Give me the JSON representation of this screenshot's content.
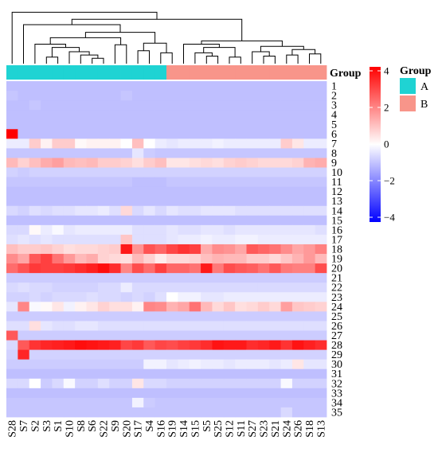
{
  "chart_data": {
    "type": "heatmap",
    "title": "",
    "columns": [
      "S28",
      "S7",
      "S2",
      "S3",
      "S1",
      "S10",
      "S8",
      "S6",
      "S22",
      "S9",
      "S20",
      "S17",
      "S4",
      "S16",
      "S19",
      "S14",
      "S15",
      "S5",
      "S25",
      "S12",
      "S11",
      "S27",
      "S23",
      "S21",
      "S24",
      "S26",
      "S18",
      "S13"
    ],
    "rows": [
      "1",
      "2",
      "3",
      "4",
      "5",
      "6",
      "7",
      "8",
      "9",
      "10",
      "11",
      "12",
      "13",
      "14",
      "15",
      "16",
      "17",
      "18",
      "19",
      "20",
      "21",
      "22",
      "23",
      "24",
      "25",
      "26",
      "27",
      "28",
      "29",
      "30",
      "31",
      "32",
      "33",
      "34",
      "35"
    ],
    "groups": [
      "A",
      "A",
      "A",
      "A",
      "A",
      "A",
      "A",
      "A",
      "A",
      "A",
      "A",
      "A",
      "A",
      "A",
      "B",
      "B",
      "B",
      "B",
      "B",
      "B",
      "B",
      "B",
      "B",
      "B",
      "B",
      "B",
      "B",
      "B"
    ],
    "group_header": "Group",
    "legend": {
      "group_title": "Group",
      "group_items": [
        {
          "label": "A",
          "color": "#1fd3d3"
        },
        {
          "label": "B",
          "color": "#f8958a"
        }
      ],
      "scale_ticks": [
        "4",
        "2",
        "0",
        "−2",
        "−4"
      ],
      "scale_range": [
        -4,
        4
      ],
      "colors": {
        "low": "#0000ff",
        "mid": "#ffffff",
        "high": "#ff0000"
      }
    },
    "values": [
      [
        -1.0,
        -1.0,
        -1.0,
        -1.0,
        -1.0,
        -1.0,
        -1.0,
        -1.0,
        -1.0,
        -1.0,
        -1.0,
        -1.0,
        -1.0,
        -1.0,
        -1.0,
        -1.0,
        -1.0,
        -1.0,
        -1.0,
        -1.0,
        -1.0,
        -1.0,
        -1.0,
        -1.0,
        -1.0,
        -1.0,
        -1.0,
        -1.0
      ],
      [
        -0.9,
        -1.0,
        -1.0,
        -1.0,
        -1.0,
        -1.0,
        -1.0,
        -1.0,
        -1.0,
        -1.0,
        -0.9,
        -1.0,
        -1.0,
        -1.0,
        -1.0,
        -1.0,
        -1.0,
        -1.0,
        -1.0,
        -1.0,
        -1.0,
        -1.0,
        -1.0,
        -1.0,
        -1.0,
        -1.0,
        -1.0,
        -1.0
      ],
      [
        -1.0,
        -1.0,
        -0.9,
        -1.0,
        -1.0,
        -1.0,
        -1.0,
        -1.0,
        -1.0,
        -1.0,
        -1.0,
        -1.0,
        -1.0,
        -1.0,
        -1.0,
        -1.0,
        -1.0,
        -1.0,
        -1.0,
        -1.0,
        -1.0,
        -1.0,
        -1.0,
        -1.0,
        -1.0,
        -1.0,
        -1.0,
        -1.0
      ],
      [
        -1.0,
        -1.0,
        -1.0,
        -1.0,
        -1.0,
        -1.0,
        -1.0,
        -1.0,
        -1.0,
        -1.0,
        -1.0,
        -1.0,
        -1.0,
        -1.0,
        -1.0,
        -1.0,
        -1.0,
        -1.0,
        -1.0,
        -1.0,
        -1.0,
        -1.0,
        -1.0,
        -1.0,
        -1.0,
        -1.0,
        -1.0,
        -1.0
      ],
      [
        -1.0,
        -1.0,
        -1.0,
        -1.0,
        -1.0,
        -1.0,
        -1.0,
        -1.0,
        -1.0,
        -1.0,
        -1.0,
        -1.0,
        -1.0,
        -1.0,
        -1.0,
        -1.0,
        -1.0,
        -1.0,
        -1.0,
        -1.0,
        -1.0,
        -1.0,
        -1.0,
        -1.0,
        -1.0,
        -1.0,
        -1.0,
        -1.0
      ],
      [
        4.0,
        -1.0,
        -1.0,
        -1.0,
        -1.0,
        -1.0,
        -1.0,
        -1.0,
        -1.0,
        -1.0,
        -1.0,
        -1.0,
        -1.0,
        -1.0,
        -1.0,
        -1.0,
        -1.0,
        -1.0,
        -1.0,
        -1.0,
        -1.0,
        -1.0,
        -1.0,
        -1.0,
        -1.0,
        -1.0,
        -1.0,
        -1.0
      ],
      [
        -0.3,
        -0.3,
        0.8,
        0.2,
        0.8,
        0.8,
        0.1,
        0.2,
        0.2,
        0.2,
        0.0,
        1.0,
        0.0,
        -0.3,
        -0.4,
        -0.3,
        -0.3,
        -0.3,
        -0.2,
        -0.3,
        -0.3,
        -0.3,
        -0.3,
        -0.3,
        0.8,
        0.4,
        -0.3,
        -0.3
      ],
      [
        -0.9,
        -0.9,
        -0.9,
        -0.9,
        -0.9,
        -0.9,
        -0.9,
        -0.9,
        -0.9,
        -0.9,
        -0.9,
        -0.4,
        -0.8,
        -0.9,
        -0.9,
        -0.9,
        -0.9,
        -0.9,
        -0.9,
        -0.9,
        -0.9,
        -0.9,
        -0.9,
        -0.9,
        -0.9,
        -0.9,
        -0.9,
        -0.9
      ],
      [
        1.1,
        0.7,
        1.0,
        1.3,
        1.5,
        1.1,
        1.0,
        1.1,
        0.8,
        0.8,
        0.7,
        0.5,
        0.8,
        1.0,
        0.4,
        0.4,
        0.5,
        0.6,
        0.5,
        0.7,
        0.8,
        0.7,
        0.6,
        0.6,
        0.6,
        0.7,
        1.2,
        1.3
      ],
      [
        -0.7,
        -0.8,
        -0.7,
        -0.7,
        -0.7,
        -0.7,
        -0.7,
        -0.7,
        -0.7,
        -0.7,
        -0.7,
        -0.7,
        -0.7,
        -0.7,
        -0.7,
        -0.7,
        -0.7,
        -0.7,
        -0.7,
        -0.7,
        -0.7,
        -0.7,
        -0.7,
        -0.7,
        -0.7,
        -0.7,
        -0.7,
        -0.7
      ],
      [
        -0.9,
        -0.9,
        -0.9,
        -0.9,
        -0.9,
        -0.9,
        -0.9,
        -0.9,
        -0.9,
        -0.9,
        -0.9,
        -1.0,
        -1.0,
        -1.0,
        -0.9,
        -0.9,
        -0.9,
        -0.9,
        -0.9,
        -0.9,
        -0.9,
        -0.9,
        -0.9,
        -0.9,
        -0.9,
        -0.9,
        -0.9,
        -0.9
      ],
      [
        -1.0,
        -1.0,
        -1.0,
        -1.0,
        -1.0,
        -1.0,
        -1.0,
        -1.0,
        -1.0,
        -1.0,
        -1.0,
        -1.0,
        -1.0,
        -1.0,
        -1.0,
        -1.0,
        -1.0,
        -1.0,
        -1.0,
        -1.0,
        -1.0,
        -1.0,
        -1.0,
        -1.0,
        -1.0,
        -1.0,
        -1.0,
        -1.0
      ],
      [
        -1.0,
        -1.0,
        -1.0,
        -1.0,
        -1.0,
        -1.0,
        -1.0,
        -1.0,
        -1.0,
        -1.0,
        -1.0,
        -1.0,
        -1.0,
        -1.0,
        -1.0,
        -1.0,
        -1.0,
        -1.0,
        -1.0,
        -1.0,
        -1.0,
        -1.0,
        -1.0,
        -1.0,
        -1.0,
        -1.0,
        -1.0,
        -1.0
      ],
      [
        -0.6,
        -0.7,
        -0.5,
        -0.6,
        -0.5,
        -0.5,
        -0.4,
        -0.4,
        -0.3,
        -0.5,
        0.6,
        -0.6,
        -0.4,
        -0.6,
        -0.4,
        -0.5,
        -0.5,
        -0.4,
        -0.4,
        -0.4,
        -0.5,
        -0.5,
        -0.5,
        -0.5,
        -0.5,
        -0.5,
        -0.5,
        -0.5
      ],
      [
        -1.0,
        -1.0,
        -1.0,
        -1.0,
        -1.0,
        -1.0,
        -1.0,
        -1.0,
        -1.0,
        -1.0,
        -1.0,
        -1.0,
        -1.0,
        -1.0,
        -1.0,
        -1.0,
        -1.0,
        -1.0,
        -1.0,
        -1.0,
        -1.0,
        -1.0,
        -1.0,
        -1.0,
        -1.0,
        -1.0,
        -1.0,
        -1.0
      ],
      [
        -0.6,
        -0.6,
        0.1,
        -0.3,
        -0.1,
        -0.4,
        -0.3,
        -0.3,
        -0.3,
        -0.3,
        -0.3,
        -0.5,
        -0.5,
        -0.5,
        -0.4,
        -0.5,
        -0.5,
        -0.4,
        -0.4,
        -0.5,
        -0.4,
        -0.4,
        -0.4,
        -0.4,
        -0.4,
        -0.4,
        -0.4,
        -0.5
      ],
      [
        -0.5,
        -0.4,
        -0.5,
        -0.4,
        -0.5,
        -0.5,
        -0.5,
        -0.5,
        -0.5,
        -0.5,
        0.9,
        -0.5,
        -0.5,
        -0.5,
        -0.4,
        -0.3,
        -0.3,
        -0.2,
        -0.3,
        -0.3,
        -0.2,
        -0.2,
        -0.3,
        -0.3,
        -0.3,
        -0.3,
        -0.3,
        -0.3
      ],
      [
        1.0,
        0.8,
        0.8,
        0.9,
        0.7,
        0.5,
        0.6,
        0.6,
        0.7,
        0.8,
        3.6,
        1.7,
        2.7,
        2.4,
        2.9,
        3.2,
        3.0,
        1.3,
        1.8,
        1.7,
        1.4,
        2.6,
        2.4,
        2.2,
        1.8,
        1.4,
        1.6,
        2.0
      ],
      [
        1.8,
        1.4,
        2.6,
        3.0,
        2.2,
        1.6,
        1.1,
        1.3,
        0.7,
        0.6,
        0.5,
        1.1,
        0.7,
        0.3,
        0.6,
        0.6,
        0.7,
        1.0,
        1.2,
        1.1,
        1.1,
        0.8,
        0.8,
        0.6,
        0.9,
        1.2,
        1.6,
        1.1
      ],
      [
        2.3,
        2.7,
        3.1,
        3.0,
        3.0,
        3.1,
        3.3,
        3.5,
        3.8,
        3.3,
        1.9,
        2.8,
        2.3,
        3.0,
        2.4,
        2.4,
        2.2,
        3.6,
        2.1,
        2.8,
        2.6,
        2.5,
        2.2,
        2.6,
        2.1,
        2.0,
        2.0,
        2.8
      ],
      [
        -0.8,
        -0.8,
        -0.8,
        -0.8,
        -0.8,
        -0.8,
        -0.8,
        -0.8,
        -0.8,
        -0.8,
        -0.8,
        -0.8,
        -0.8,
        -0.8,
        -0.8,
        -0.8,
        -0.8,
        -0.8,
        -0.8,
        -0.8,
        -0.8,
        -0.8,
        -0.8,
        -0.8,
        -0.8,
        -0.8,
        -0.8,
        -0.8
      ],
      [
        -0.6,
        -0.5,
        -0.6,
        -0.6,
        -0.7,
        -0.7,
        -0.7,
        -0.7,
        -0.6,
        -0.6,
        -0.3,
        -0.6,
        -0.6,
        -0.6,
        -0.6,
        -0.6,
        -0.6,
        -0.6,
        -0.6,
        -0.6,
        -0.6,
        -0.6,
        -0.6,
        -0.6,
        -0.6,
        -0.6,
        -0.6,
        -0.6
      ],
      [
        -0.7,
        -0.7,
        -0.6,
        -0.7,
        -0.6,
        -0.6,
        -0.6,
        -0.5,
        -0.6,
        -0.6,
        -0.7,
        -0.6,
        -0.7,
        -0.5,
        0.0,
        -0.2,
        -0.2,
        -0.4,
        -0.4,
        -0.3,
        -0.3,
        -0.3,
        -0.3,
        -0.3,
        -0.3,
        -0.3,
        -0.3,
        -0.3
      ],
      [
        -0.4,
        1.9,
        -0.1,
        0.1,
        0.4,
        -0.2,
        0.2,
        0.4,
        0.7,
        0.5,
        0.5,
        0.2,
        1.9,
        1.8,
        1.2,
        1.4,
        2.2,
        1.1,
        0.6,
        0.9,
        0.5,
        0.6,
        0.8,
        0.6,
        1.5,
        0.9,
        0.8,
        0.7
      ],
      [
        -0.8,
        -0.8,
        -0.8,
        -0.8,
        -0.8,
        -0.8,
        -0.8,
        -0.8,
        -0.8,
        -0.8,
        -0.8,
        -0.8,
        -0.8,
        -0.8,
        -0.8,
        -0.8,
        -0.8,
        -0.8,
        -0.8,
        -0.8,
        -0.8,
        -0.8,
        -0.8,
        -0.8,
        -0.8,
        -0.8,
        -0.8,
        -0.8
      ],
      [
        -0.5,
        -0.5,
        0.5,
        -0.4,
        -0.5,
        -0.5,
        -0.4,
        -0.4,
        -0.5,
        -0.5,
        -0.5,
        -0.5,
        -0.5,
        -0.5,
        -0.5,
        -0.5,
        -0.5,
        -0.5,
        -0.5,
        -0.5,
        -0.5,
        -0.5,
        -0.5,
        -0.5,
        -0.5,
        -0.5,
        -0.5,
        -0.5
      ],
      [
        2.6,
        -0.8,
        -0.8,
        -0.8,
        -0.8,
        -0.8,
        -0.8,
        -0.8,
        -0.8,
        -0.8,
        -0.8,
        -0.8,
        -0.8,
        -0.8,
        -0.8,
        -0.8,
        -0.8,
        -0.8,
        -0.8,
        -0.8,
        -0.8,
        -0.8,
        -0.8,
        -0.8,
        -0.8,
        -0.8,
        -0.8,
        -0.8
      ],
      [
        -0.6,
        2.6,
        3.2,
        3.4,
        3.5,
        3.6,
        3.8,
        3.7,
        3.6,
        3.5,
        2.9,
        3.1,
        2.6,
        2.9,
        2.8,
        3.0,
        3.1,
        3.3,
        3.7,
        3.6,
        3.6,
        3.3,
        3.4,
        3.6,
        3.2,
        3.7,
        3.5,
        3.3
      ],
      [
        -0.7,
        3.4,
        -0.7,
        -0.7,
        -0.7,
        -0.7,
        -0.7,
        -0.7,
        -0.7,
        -0.7,
        -0.7,
        -0.7,
        -0.7,
        -0.7,
        -0.7,
        -0.7,
        -0.7,
        -0.7,
        -0.7,
        -0.7,
        -0.7,
        -0.7,
        -0.7,
        -0.7,
        -0.7,
        -0.7,
        -0.7,
        -0.7
      ],
      [
        -0.8,
        -0.8,
        -0.8,
        -0.8,
        -0.8,
        -0.8,
        -0.8,
        -0.8,
        -0.8,
        -0.8,
        -0.8,
        -0.8,
        -0.2,
        -0.2,
        -0.4,
        -0.3,
        -0.2,
        -0.3,
        -0.3,
        -0.4,
        -0.3,
        -0.3,
        -0.3,
        -0.4,
        -0.3,
        0.4,
        -0.4,
        -0.4
      ],
      [
        -1.0,
        -1.0,
        -1.0,
        -1.0,
        -1.0,
        -1.0,
        -1.0,
        -1.0,
        -1.0,
        -1.0,
        -1.0,
        -1.0,
        -1.0,
        -1.0,
        -1.0,
        -1.0,
        -1.0,
        -1.0,
        -1.0,
        -1.0,
        -1.0,
        -1.0,
        -1.0,
        -1.0,
        -1.0,
        -1.0,
        -1.0,
        -1.0
      ],
      [
        -0.6,
        -0.6,
        0.0,
        -0.8,
        -0.6,
        -0.1,
        -0.7,
        -0.7,
        -0.5,
        -0.7,
        -0.7,
        0.4,
        -0.6,
        -0.6,
        -0.7,
        -0.7,
        -0.7,
        -0.7,
        -0.7,
        -0.7,
        -0.7,
        -0.7,
        -0.7,
        -0.7,
        -0.1,
        -0.7,
        -0.7,
        -0.7
      ],
      [
        -1.0,
        -1.0,
        -1.0,
        -1.0,
        -1.0,
        -1.0,
        -1.0,
        -1.0,
        -1.0,
        -1.0,
        -1.0,
        -1.0,
        -1.0,
        -1.0,
        -1.0,
        -1.0,
        -1.0,
        -1.0,
        -1.0,
        -1.0,
        -1.0,
        -1.0,
        -1.0,
        -1.0,
        -1.0,
        -1.0,
        -1.0,
        -1.0
      ],
      [
        -0.9,
        -0.9,
        -0.9,
        -0.9,
        -0.9,
        -0.9,
        -0.9,
        -0.9,
        -0.9,
        -0.9,
        -0.9,
        -0.2,
        -0.8,
        -0.9,
        -0.9,
        -0.9,
        -0.9,
        -0.9,
        -0.9,
        -0.9,
        -0.9,
        -0.9,
        -0.9,
        -0.9,
        -0.9,
        -0.9,
        -0.9,
        -0.9
      ],
      [
        -0.9,
        -0.9,
        -0.9,
        -0.9,
        -0.9,
        -0.9,
        -0.9,
        -0.9,
        -0.9,
        -0.9,
        -0.9,
        -0.9,
        -0.9,
        -0.9,
        -0.9,
        -0.9,
        -0.9,
        -0.9,
        -0.9,
        -0.9,
        -0.9,
        -0.9,
        -0.9,
        -0.9,
        -0.6,
        -0.9,
        -0.9,
        -0.9
      ]
    ]
  }
}
